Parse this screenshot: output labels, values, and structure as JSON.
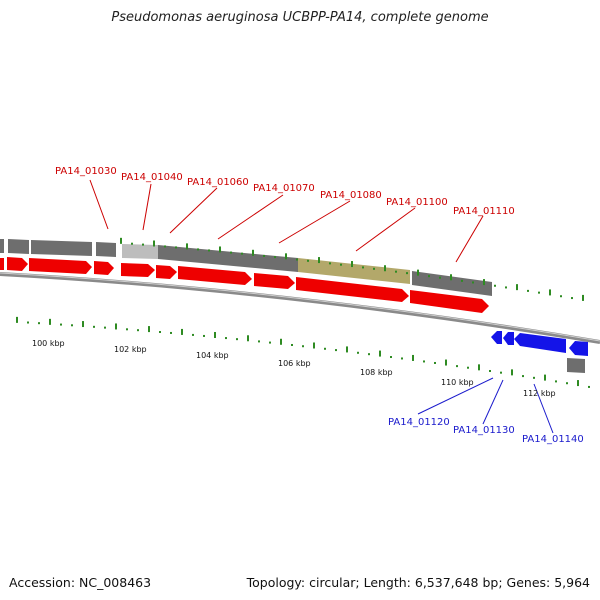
{
  "title": "Pseudomonas aeruginosa UCBPP-PA14, complete genome",
  "footer": {
    "accession": "Accession: NC_008463",
    "summary": "Topology: circular; Length: 6,537,648 bp; Genes: 5,964"
  },
  "colors": {
    "forward_cds": "#ee0000",
    "reverse_cds": "#1414e8",
    "gene_dark": "#6e6e6e",
    "gene_light": "#bdbdbd",
    "gene_highlight": "#b3a86a",
    "gc_ticks": "#2e8b22",
    "forward_label": "#cc0000",
    "reverse_label": "#1a1acc"
  },
  "forward_gene_labels": [
    "PA14_01030",
    "PA14_01040",
    "PA14_01060",
    "PA14_01070",
    "PA14_01080",
    "PA14_01100",
    "PA14_01110"
  ],
  "reverse_gene_labels": [
    "PA14_01120",
    "PA14_01130",
    "PA14_01140"
  ],
  "kbp_labels": [
    "100 kbp",
    "102 kbp",
    "104 kbp",
    "106 kbp",
    "108 kbp",
    "110 kbp",
    "112 kbp"
  ]
}
